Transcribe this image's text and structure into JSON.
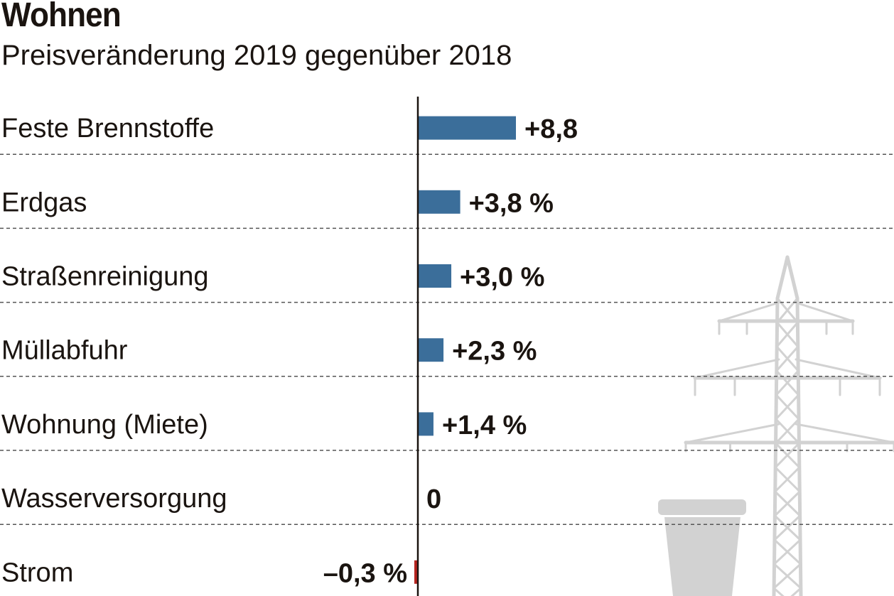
{
  "title": "Wohnen",
  "subtitle": "Preisveränderung 2019 gegenüber 2018",
  "colors": {
    "positive": "#3b6e9a",
    "negative": "#b5241f",
    "illustration": "#d2d2d2"
  },
  "illustration": [
    "power-pylon",
    "trash-bin"
  ],
  "chart_data": {
    "type": "bar",
    "orientation": "horizontal",
    "categories": [
      "Feste Brennstoffe",
      "Erdgas",
      "Straßenreinigung",
      "Müllabfuhr",
      "Wohnung (Miete)",
      "Wasserversorgung",
      "Strom"
    ],
    "values": [
      8.8,
      3.8,
      3.0,
      2.3,
      1.4,
      0,
      -0.3
    ],
    "data_labels": [
      "+8,8",
      "+3,8 %",
      "+3,0 %",
      "+2,3 %",
      "+1,4 %",
      "0",
      "–0,3 %"
    ],
    "unit": "%",
    "grid": false
  }
}
